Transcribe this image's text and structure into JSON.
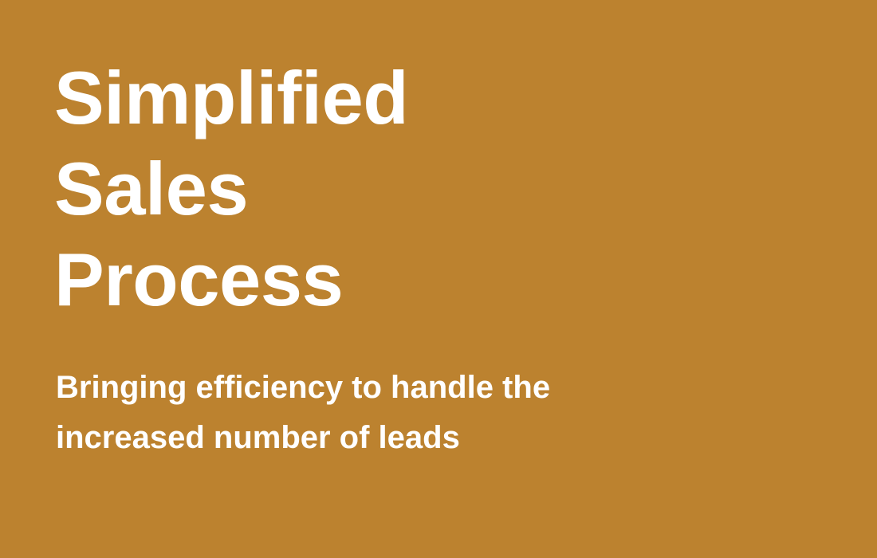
{
  "slide": {
    "background_color": "#bc822f",
    "text_color": "#ffffff",
    "title_lines": [
      "Simplified",
      "Sales",
      "Process"
    ],
    "subtitle_lines": [
      "Bringing efficiency to handle the",
      "increased number of leads"
    ]
  }
}
